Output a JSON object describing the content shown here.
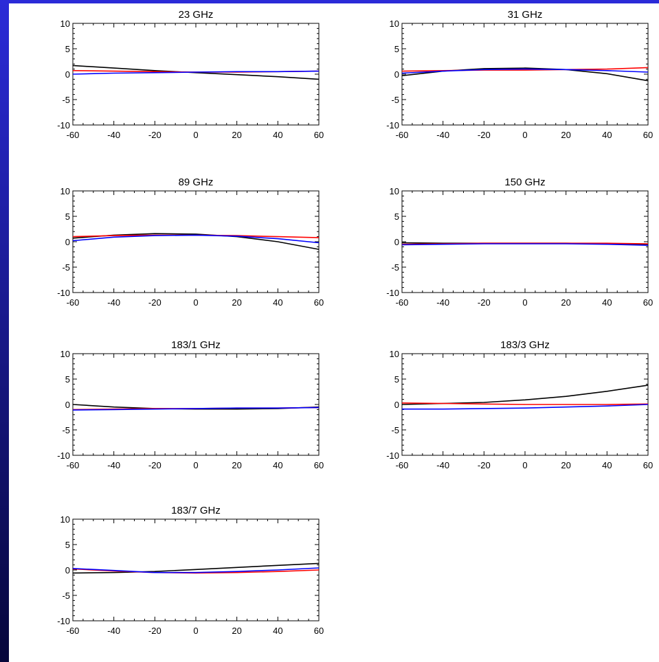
{
  "frame": {
    "color_top": "#2b2bd8",
    "color_bottom": "#06063a"
  },
  "series_colors": [
    "#000000",
    "#ff0000",
    "#0000ff"
  ],
  "chart_data": [
    {
      "type": "line",
      "title": "23 GHz",
      "xlim": [
        -60,
        60
      ],
      "ylim": [
        -10,
        10
      ],
      "xticks": [
        "-60",
        "-40",
        "-20",
        "0",
        "20",
        "40",
        "60"
      ],
      "yticks": [
        "10",
        "5",
        "0",
        "-5",
        "-10"
      ],
      "grid": false,
      "series": [
        {
          "color": "black",
          "x": [
            -60,
            -40,
            -20,
            0,
            20,
            40,
            60
          ],
          "y": [
            1.7,
            1.2,
            0.7,
            0.3,
            -0.1,
            -0.5,
            -1.0
          ]
        },
        {
          "color": "red",
          "x": [
            -60,
            -40,
            -20,
            0,
            20,
            40,
            60
          ],
          "y": [
            0.7,
            0.6,
            0.5,
            0.4,
            0.4,
            0.5,
            0.6
          ]
        },
        {
          "color": "blue",
          "x": [
            -60,
            -40,
            -20,
            0,
            20,
            40,
            60
          ],
          "y": [
            0.0,
            0.2,
            0.3,
            0.4,
            0.5,
            0.5,
            0.6
          ]
        }
      ]
    },
    {
      "type": "line",
      "title": "31 GHz",
      "xlim": [
        -60,
        60
      ],
      "ylim": [
        -10,
        10
      ],
      "xticks": [
        "-60",
        "-40",
        "-20",
        "0",
        "20",
        "40",
        "60"
      ],
      "yticks": [
        "10",
        "5",
        "0",
        "-5",
        "-10"
      ],
      "grid": false,
      "series": [
        {
          "color": "black",
          "x": [
            -60,
            -40,
            -20,
            0,
            20,
            40,
            60
          ],
          "y": [
            -0.3,
            0.6,
            1.1,
            1.2,
            0.9,
            0.1,
            -1.3
          ]
        },
        {
          "color": "red",
          "x": [
            -60,
            -40,
            -20,
            0,
            20,
            40,
            60
          ],
          "y": [
            0.6,
            0.7,
            0.8,
            0.8,
            0.9,
            1.0,
            1.3
          ]
        },
        {
          "color": "blue",
          "x": [
            -60,
            -40,
            -20,
            0,
            20,
            40,
            60
          ],
          "y": [
            0.2,
            0.6,
            0.9,
            1.0,
            0.9,
            0.7,
            0.4
          ]
        }
      ]
    },
    {
      "type": "line",
      "title": "89 GHz",
      "xlim": [
        -60,
        60
      ],
      "ylim": [
        -10,
        10
      ],
      "xticks": [
        "-60",
        "-40",
        "-20",
        "0",
        "20",
        "40",
        "60"
      ],
      "yticks": [
        "10",
        "5",
        "0",
        "-5",
        "-10"
      ],
      "grid": false,
      "series": [
        {
          "color": "black",
          "x": [
            -60,
            -40,
            -20,
            0,
            20,
            40,
            60
          ],
          "y": [
            0.7,
            1.3,
            1.6,
            1.5,
            1.0,
            0.0,
            -1.5
          ]
        },
        {
          "color": "red",
          "x": [
            -60,
            -40,
            -20,
            0,
            20,
            40,
            60
          ],
          "y": [
            1.0,
            1.2,
            1.3,
            1.3,
            1.2,
            1.0,
            0.8
          ]
        },
        {
          "color": "blue",
          "x": [
            -60,
            -40,
            -20,
            0,
            20,
            40,
            60
          ],
          "y": [
            0.2,
            0.9,
            1.2,
            1.3,
            1.1,
            0.6,
            -0.2
          ]
        }
      ]
    },
    {
      "type": "line",
      "title": "150 GHz",
      "xlim": [
        -60,
        60
      ],
      "ylim": [
        -10,
        10
      ],
      "xticks": [
        "-60",
        "-40",
        "-20",
        "0",
        "20",
        "40",
        "60"
      ],
      "yticks": [
        "10",
        "5",
        "0",
        "-5",
        "-10"
      ],
      "grid": false,
      "series": [
        {
          "color": "black",
          "x": [
            -60,
            -40,
            -20,
            0,
            20,
            40,
            60
          ],
          "y": [
            -0.2,
            -0.3,
            -0.3,
            -0.3,
            -0.3,
            -0.4,
            -0.6
          ]
        },
        {
          "color": "red",
          "x": [
            -60,
            -40,
            -20,
            0,
            20,
            40,
            60
          ],
          "y": [
            -0.5,
            -0.4,
            -0.3,
            -0.3,
            -0.3,
            -0.3,
            -0.4
          ]
        },
        {
          "color": "blue",
          "x": [
            -60,
            -40,
            -20,
            0,
            20,
            40,
            60
          ],
          "y": [
            -0.6,
            -0.5,
            -0.4,
            -0.4,
            -0.4,
            -0.5,
            -0.7
          ]
        }
      ]
    },
    {
      "type": "line",
      "title": "183/1 GHz",
      "xlim": [
        -60,
        60
      ],
      "ylim": [
        -10,
        10
      ],
      "xticks": [
        "-60",
        "-40",
        "-20",
        "0",
        "20",
        "40",
        "60"
      ],
      "yticks": [
        "10",
        "5",
        "0",
        "-5",
        "-10"
      ],
      "grid": false,
      "series": [
        {
          "color": "black",
          "x": [
            -60,
            -40,
            -20,
            0,
            20,
            40,
            60
          ],
          "y": [
            0.0,
            -0.5,
            -0.8,
            -0.9,
            -0.9,
            -0.8,
            -0.5
          ]
        },
        {
          "color": "red",
          "x": [
            -60,
            -40,
            -20,
            0,
            20,
            40,
            60
          ],
          "y": [
            -1.0,
            -0.9,
            -0.8,
            -0.8,
            -0.7,
            -0.7,
            -0.6
          ]
        },
        {
          "color": "blue",
          "x": [
            -60,
            -40,
            -20,
            0,
            20,
            40,
            60
          ],
          "y": [
            -1.1,
            -1.0,
            -0.9,
            -0.8,
            -0.7,
            -0.7,
            -0.6
          ]
        }
      ]
    },
    {
      "type": "line",
      "title": "183/3 GHz",
      "xlim": [
        -60,
        60
      ],
      "ylim": [
        -10,
        10
      ],
      "xticks": [
        "-60",
        "-40",
        "-20",
        "0",
        "20",
        "40",
        "60"
      ],
      "yticks": [
        "10",
        "5",
        "0",
        "-5",
        "-10"
      ],
      "grid": false,
      "series": [
        {
          "color": "black",
          "x": [
            -60,
            -40,
            -20,
            0,
            20,
            40,
            60
          ],
          "y": [
            0.0,
            0.2,
            0.4,
            0.9,
            1.6,
            2.6,
            3.8
          ]
        },
        {
          "color": "red",
          "x": [
            -60,
            -40,
            -20,
            0,
            20,
            40,
            60
          ],
          "y": [
            0.3,
            0.2,
            0.1,
            0.0,
            0.0,
            0.0,
            0.1
          ]
        },
        {
          "color": "blue",
          "x": [
            -60,
            -40,
            -20,
            0,
            20,
            40,
            60
          ],
          "y": [
            -0.9,
            -0.9,
            -0.8,
            -0.7,
            -0.5,
            -0.3,
            0.0
          ]
        }
      ]
    },
    {
      "type": "line",
      "title": "183/7 GHz",
      "xlim": [
        -60,
        60
      ],
      "ylim": [
        -10,
        10
      ],
      "xticks": [
        "-60",
        "-40",
        "-20",
        "0",
        "20",
        "40",
        "60"
      ],
      "yticks": [
        "10",
        "5",
        "0",
        "-5",
        "-10"
      ],
      "grid": false,
      "series": [
        {
          "color": "black",
          "x": [
            -60,
            -40,
            -20,
            0,
            20,
            40,
            60
          ],
          "y": [
            -0.6,
            -0.5,
            -0.3,
            0.1,
            0.5,
            0.9,
            1.3
          ]
        },
        {
          "color": "red",
          "x": [
            -60,
            -40,
            -20,
            0,
            20,
            40,
            60
          ],
          "y": [
            0.2,
            -0.2,
            -0.5,
            -0.6,
            -0.5,
            -0.3,
            0.0
          ]
        },
        {
          "color": "blue",
          "x": [
            -60,
            -40,
            -20,
            0,
            20,
            40,
            60
          ],
          "y": [
            0.3,
            -0.1,
            -0.5,
            -0.5,
            -0.3,
            0.0,
            0.4
          ]
        }
      ]
    }
  ]
}
